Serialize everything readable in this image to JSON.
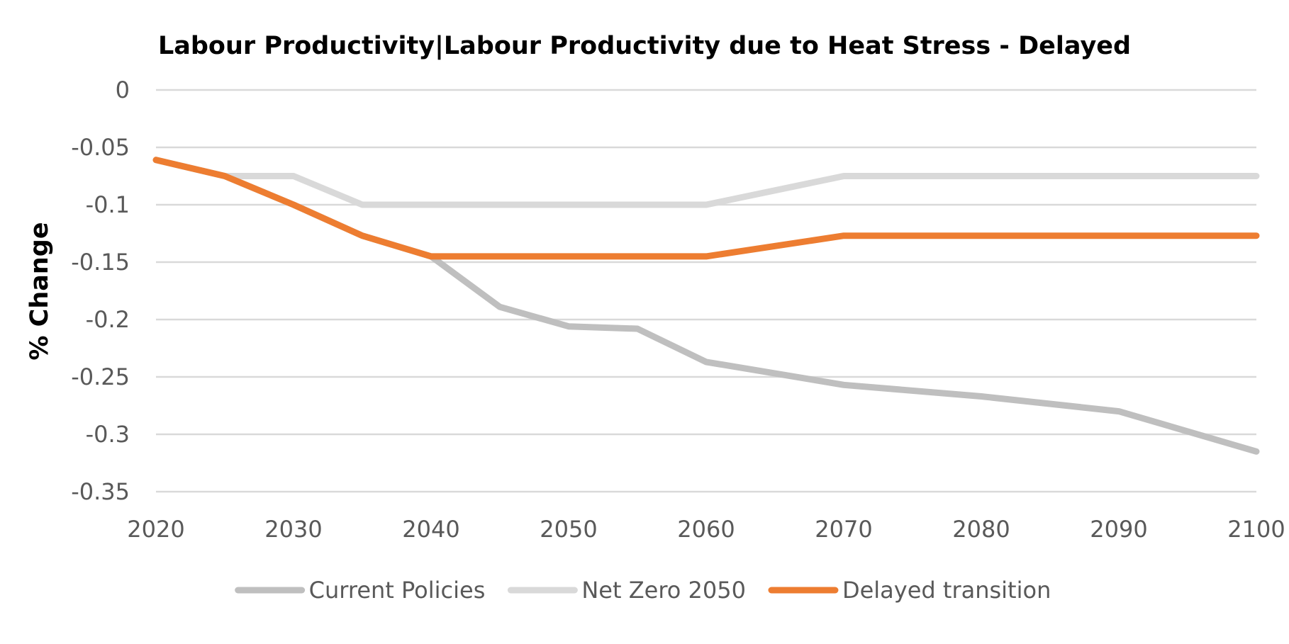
{
  "chart_data": {
    "type": "line",
    "title": "Labour Productivity|Labour Productivity due to Heat Stress - Delayed",
    "xlabel": "",
    "ylabel": "% Change",
    "x": [
      2020,
      2025,
      2030,
      2035,
      2040,
      2045,
      2050,
      2055,
      2060,
      2070,
      2080,
      2090,
      2100
    ],
    "xlim": [
      2020,
      2100
    ],
    "xticks": [
      "2020",
      "2030",
      "2040",
      "2050",
      "2060",
      "2070",
      "2080",
      "2090",
      "2100"
    ],
    "ylim": [
      -0.35,
      0
    ],
    "yticks": [
      "0",
      "-0.05",
      "-0.1",
      "-0.15",
      "-0.2",
      "-0.25",
      "-0.3",
      "-0.35"
    ],
    "grid": true,
    "legend_position": "bottom",
    "series": [
      {
        "name": "Current Policies",
        "color": "#bfbfbf",
        "values": [
          -0.061,
          -0.075,
          -0.1,
          -0.127,
          -0.145,
          -0.189,
          -0.206,
          -0.208,
          -0.237,
          -0.257,
          -0.267,
          -0.28,
          -0.315
        ]
      },
      {
        "name": "Net Zero 2050",
        "color": "#d9d9d9",
        "values": [
          -0.061,
          -0.075,
          -0.075,
          -0.1,
          -0.1,
          -0.1,
          -0.1,
          -0.1,
          -0.1,
          -0.075,
          -0.075,
          -0.075,
          -0.075
        ]
      },
      {
        "name": "Delayed transition",
        "color": "#ed7d31",
        "values": [
          -0.061,
          -0.075,
          -0.1,
          -0.127,
          -0.145,
          -0.145,
          -0.145,
          -0.145,
          -0.145,
          -0.127,
          -0.127,
          -0.127,
          -0.127
        ]
      }
    ]
  }
}
